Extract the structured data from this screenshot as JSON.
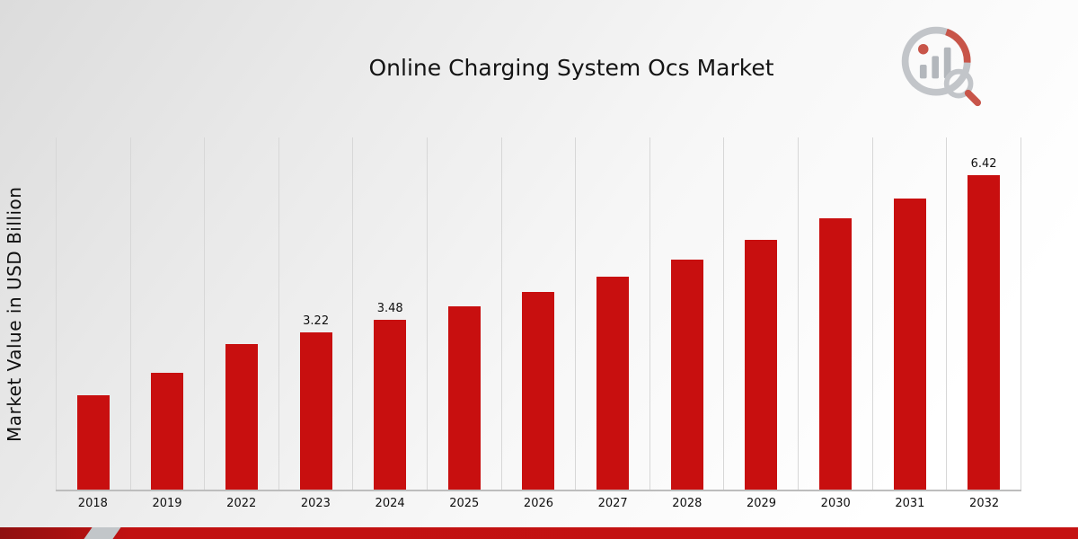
{
  "page": {
    "title": "Online Charging System Ocs Market"
  },
  "branding": {
    "logo_icon": "bar-chart-magnifier-logo"
  },
  "chart_data": {
    "type": "bar",
    "title": "Online Charging System Ocs Market",
    "xlabel": "",
    "ylabel": "Market Value in USD Billion",
    "categories": [
      "2018",
      "2019",
      "2022",
      "2023",
      "2024",
      "2025",
      "2026",
      "2027",
      "2028",
      "2029",
      "2030",
      "2031",
      "2032"
    ],
    "values": [
      1.93,
      2.38,
      2.98,
      3.22,
      3.48,
      3.74,
      4.05,
      4.36,
      4.71,
      5.1,
      5.54,
      5.96,
      6.42
    ],
    "data_labels": [
      null,
      null,
      null,
      "3.22",
      "3.48",
      null,
      null,
      null,
      null,
      null,
      null,
      null,
      "6.42"
    ],
    "ylim": [
      0,
      7.2
    ],
    "grid": "vertical-only",
    "legend": "none",
    "bar_color": "#C80F0F",
    "accent_color": "#C11111",
    "gridline_color": "#d7d7d7",
    "background_style": "light gray diagonal gradient"
  }
}
